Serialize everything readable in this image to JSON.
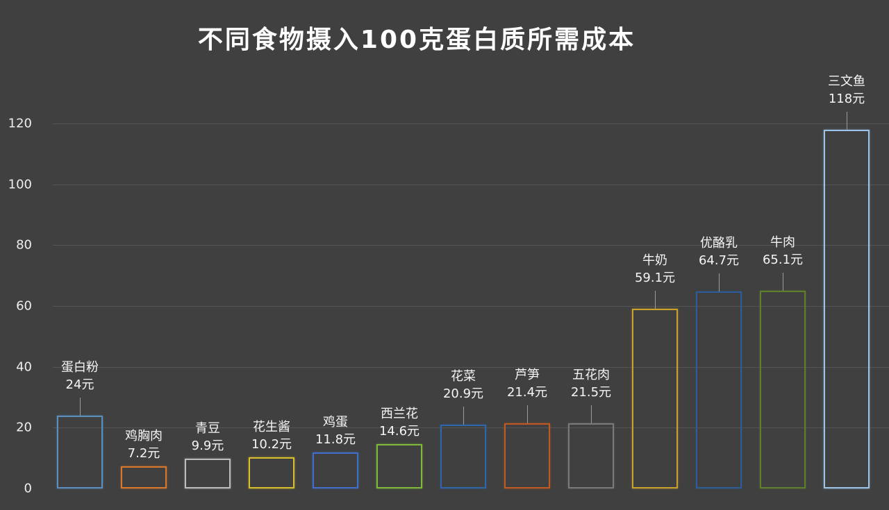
{
  "title": "不同食物摄入100克蛋白质所需成本",
  "chart_data": {
    "type": "bar",
    "title": "不同食物摄入100克蛋白质所需成本",
    "xlabel": "",
    "ylabel": "",
    "ylim": [
      0,
      120
    ],
    "yticks": [
      0,
      20,
      40,
      60,
      80,
      100,
      120
    ],
    "grid": true,
    "legend": null,
    "categories": [
      "蛋白粉",
      "鸡胸肉",
      "青豆",
      "花生酱",
      "鸡蛋",
      "西兰花",
      "花菜",
      "芦笋",
      "五花肉",
      "牛奶",
      "优酪乳",
      "牛肉",
      "三文鱼"
    ],
    "values": [
      24,
      7.2,
      9.9,
      10.2,
      11.8,
      14.6,
      20.9,
      21.4,
      21.5,
      59.1,
      64.7,
      65.1,
      118
    ],
    "value_labels": [
      "24元",
      "7.2元",
      "9.9元",
      "10.2元",
      "11.8元",
      "14.6元",
      "20.9元",
      "21.4元",
      "21.5元",
      "59.1元",
      "64.7元",
      "65.1元",
      "118元"
    ],
    "colors": [
      "#5a8fc0",
      "#d9772b",
      "#bdbdbd",
      "#d8bf2e",
      "#3f6fc8",
      "#7fb83a",
      "#2f66a8",
      "#c05a22",
      "#7a7a7a",
      "#c9a12c",
      "#2d5d96",
      "#5f7f2c",
      "#9cc4e6"
    ],
    "leader_lines": [
      true,
      false,
      false,
      false,
      false,
      false,
      true,
      true,
      true,
      true,
      true,
      true,
      true
    ]
  }
}
